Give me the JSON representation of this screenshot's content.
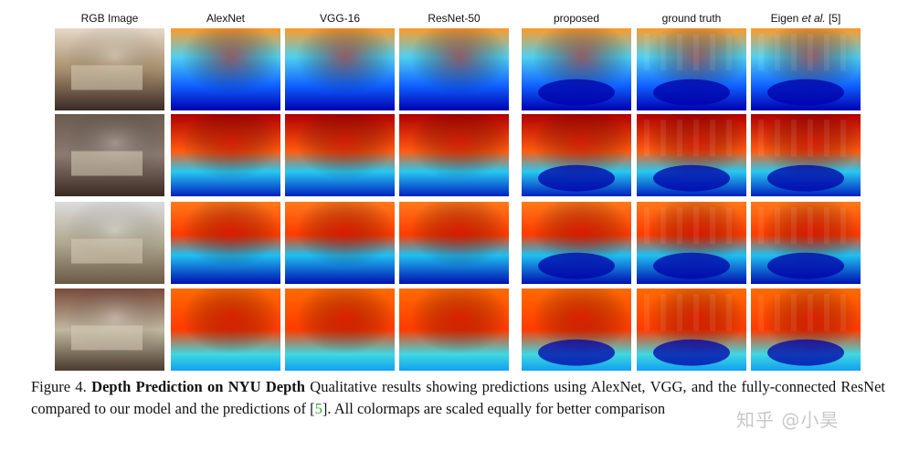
{
  "columns": [
    {
      "id": "rgb",
      "label": "RGB Image"
    },
    {
      "id": "alexnet",
      "label": "AlexNet"
    },
    {
      "id": "vgg16",
      "label": "VGG-16"
    },
    {
      "id": "resnet50",
      "label": "ResNet-50"
    },
    {
      "id": "proposed",
      "label": "proposed"
    },
    {
      "id": "ground_truth",
      "label": "ground truth"
    },
    {
      "id": "eigen",
      "label_prefix": "Eigen ",
      "label_italic": "et al.",
      "label_suffix": " [5]"
    }
  ],
  "rows": [
    "living-room-sofa",
    "living-room-windows",
    "kitchen-dining",
    "library-shelves"
  ],
  "caption": {
    "figure_label": "Figure 4.",
    "title": "Depth Prediction on NYU Depth",
    "text_1": " Qualitative results showing predictions using AlexNet, VGG, and the fully-connected ResNet compared to our model and the predictions of [",
    "ref_number": "5",
    "text_2": "].  All colormaps are scaled equally for better comparison"
  },
  "watermark": "知乎 @小昊",
  "colors": {
    "near": "#0000a0",
    "mid": "#19c8e8",
    "far": "#d81a00",
    "ref_green": "#2ea82e"
  }
}
